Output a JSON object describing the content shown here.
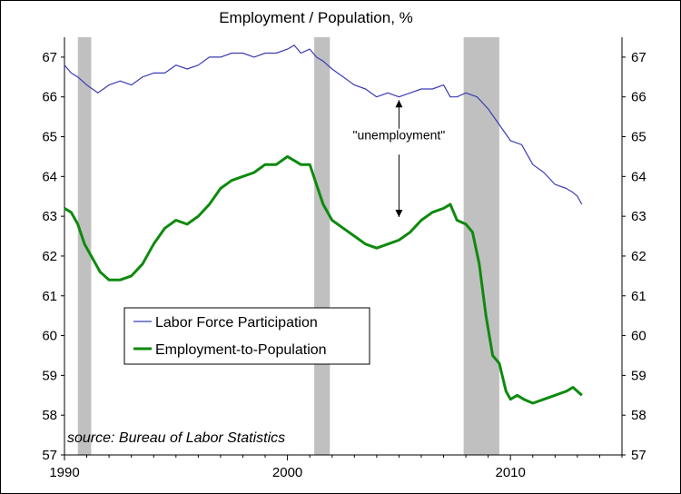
{
  "chart_data": {
    "type": "line",
    "title": "Employment / Population, %",
    "xlabel": "",
    "ylabel": "",
    "xlim": [
      1990,
      2015
    ],
    "ylim": [
      57,
      67.5
    ],
    "x_ticks": [
      1990,
      2000,
      2010
    ],
    "y_ticks": [
      57,
      58,
      59,
      60,
      61,
      62,
      63,
      64,
      65,
      66,
      67
    ],
    "grid": false,
    "legend_position": "left-center",
    "recessions": [
      [
        1990.6,
        1991.2
      ],
      [
        2001.2,
        2001.9
      ],
      [
        2007.9,
        2009.5
      ]
    ],
    "annotation": "\"unemployment\"",
    "source": "source: Bureau of Labor Statistics",
    "series": [
      {
        "name": "Labor Force Participation",
        "color": "#3c3cb4",
        "x": [
          1990.0,
          1990.3,
          1990.6,
          1991.0,
          1991.5,
          1992.0,
          1992.5,
          1993.0,
          1993.5,
          1994.0,
          1994.5,
          1995.0,
          1995.5,
          1996.0,
          1996.5,
          1997.0,
          1997.5,
          1998.0,
          1998.5,
          1999.0,
          1999.5,
          2000.0,
          2000.3,
          2000.6,
          2001.0,
          2001.3,
          2001.6,
          2002.0,
          2002.5,
          2003.0,
          2003.5,
          2004.0,
          2004.5,
          2005.0,
          2005.5,
          2006.0,
          2006.5,
          2007.0,
          2007.3,
          2007.6,
          2008.0,
          2008.5,
          2009.0,
          2009.5,
          2010.0,
          2010.5,
          2011.0,
          2011.5,
          2012.0,
          2012.5,
          2012.8,
          2013.0,
          2013.2
        ],
        "values": [
          66.8,
          66.6,
          66.5,
          66.3,
          66.1,
          66.3,
          66.4,
          66.3,
          66.5,
          66.6,
          66.6,
          66.8,
          66.7,
          66.8,
          67.0,
          67.0,
          67.1,
          67.1,
          67.0,
          67.1,
          67.1,
          67.2,
          67.3,
          67.1,
          67.2,
          67.0,
          66.9,
          66.7,
          66.5,
          66.3,
          66.2,
          66.0,
          66.1,
          66.0,
          66.1,
          66.2,
          66.2,
          66.3,
          66.0,
          66.0,
          66.1,
          66.0,
          65.7,
          65.3,
          64.9,
          64.8,
          64.3,
          64.1,
          63.8,
          63.7,
          63.6,
          63.5,
          63.3
        ]
      },
      {
        "name": "Employment-to-Population",
        "color": "#0e8a0e",
        "x": [
          1990.0,
          1990.3,
          1990.6,
          1990.9,
          1991.2,
          1991.6,
          1992.0,
          1992.5,
          1993.0,
          1993.5,
          1994.0,
          1994.5,
          1995.0,
          1995.5,
          1996.0,
          1996.5,
          1997.0,
          1997.5,
          1998.0,
          1998.5,
          1999.0,
          1999.5,
          2000.0,
          2000.3,
          2000.6,
          2001.0,
          2001.3,
          2001.6,
          2002.0,
          2002.5,
          2003.0,
          2003.5,
          2004.0,
          2004.5,
          2005.0,
          2005.5,
          2006.0,
          2006.5,
          2007.0,
          2007.3,
          2007.6,
          2008.0,
          2008.3,
          2008.6,
          2008.9,
          2009.2,
          2009.5,
          2009.8,
          2010.0,
          2010.3,
          2010.6,
          2011.0,
          2011.5,
          2012.0,
          2012.5,
          2012.8,
          2013.0,
          2013.2
        ],
        "values": [
          63.2,
          63.1,
          62.8,
          62.3,
          62.0,
          61.6,
          61.4,
          61.4,
          61.5,
          61.8,
          62.3,
          62.7,
          62.9,
          62.8,
          63.0,
          63.3,
          63.7,
          63.9,
          64.0,
          64.1,
          64.3,
          64.3,
          64.5,
          64.4,
          64.3,
          64.3,
          63.8,
          63.3,
          62.9,
          62.7,
          62.5,
          62.3,
          62.2,
          62.3,
          62.4,
          62.6,
          62.9,
          63.1,
          63.2,
          63.3,
          62.9,
          62.8,
          62.6,
          61.8,
          60.5,
          59.5,
          59.3,
          58.6,
          58.4,
          58.5,
          58.4,
          58.3,
          58.4,
          58.5,
          58.6,
          58.7,
          58.6,
          58.5
        ]
      }
    ]
  }
}
